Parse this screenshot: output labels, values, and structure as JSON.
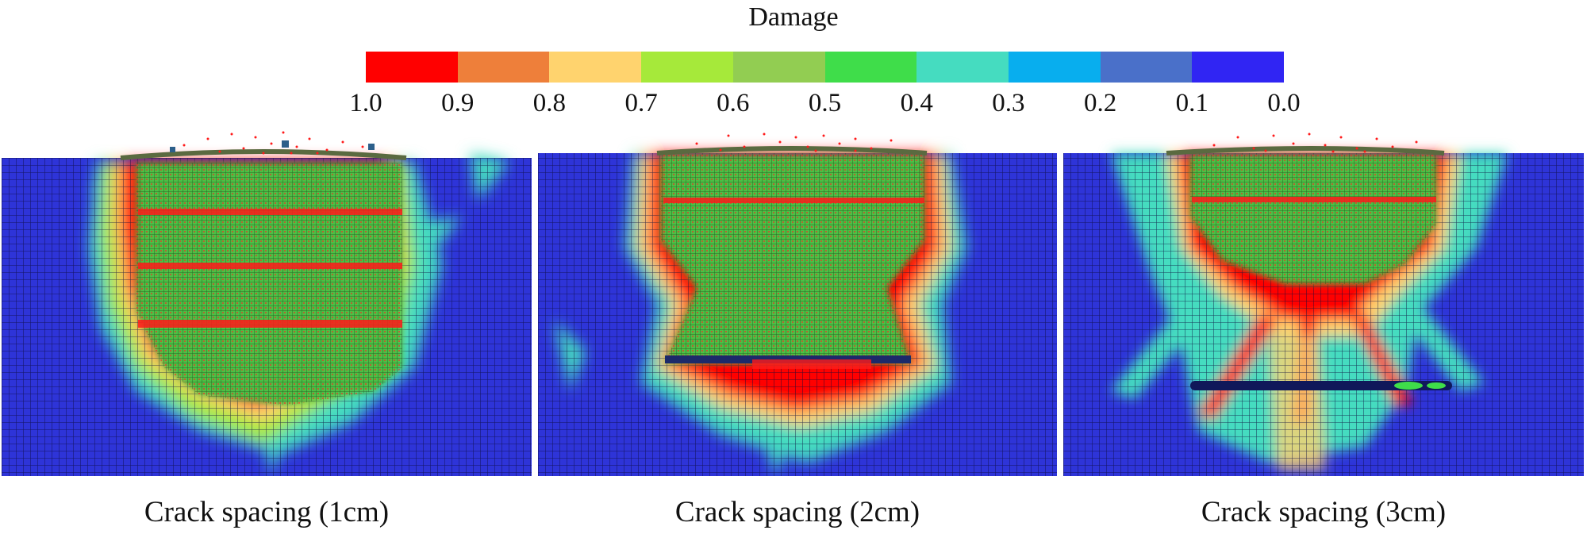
{
  "legend": {
    "title": "Damage",
    "colors": [
      "#ff0000",
      "#ee7f3a",
      "#ffd36e",
      "#a6e93a",
      "#92cd52",
      "#3fdd4a",
      "#45dcc0",
      "#08aeee",
      "#4a70c9",
      "#3025f3"
    ],
    "tick_labels": [
      "1.0",
      "0.9",
      "0.8",
      "0.7",
      "0.6",
      "0.5",
      "0.4",
      "0.3",
      "0.2",
      "0.1",
      "0.0"
    ]
  },
  "panels": [
    {
      "caption": "Crack spacing (1cm)"
    },
    {
      "caption": "Crack spacing (2cm)"
    },
    {
      "caption": "Crack spacing (3cm)"
    }
  ],
  "colors": {
    "background_mesh": "#2e34d8",
    "grid_line": "#0a0a3a",
    "debris": "#ff1a1a"
  }
}
